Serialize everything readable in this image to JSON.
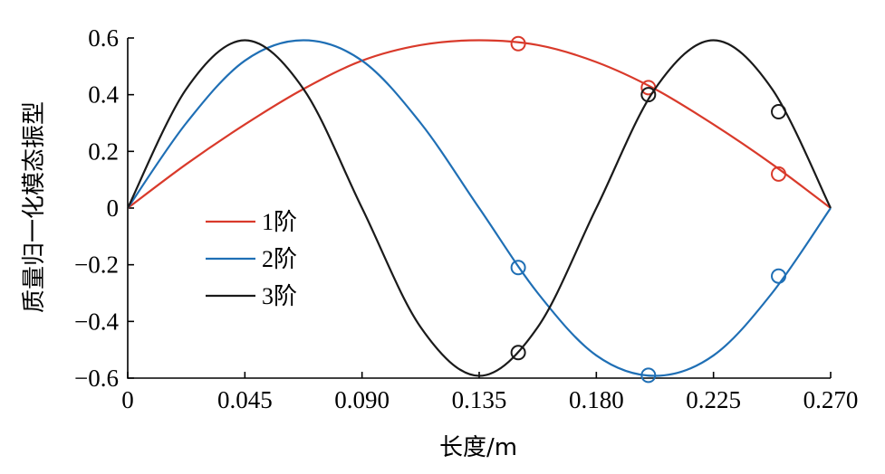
{
  "chart_data": {
    "type": "line",
    "xlabel": "长度/m",
    "ylabel": "质量归一化模态振型",
    "xlim": [
      0,
      0.27
    ],
    "ylim": [
      -0.6,
      0.6
    ],
    "x_ticks": [
      "0",
      "0.045",
      "0.090",
      "0.135",
      "0.180",
      "0.225",
      "0.270"
    ],
    "x_tick_values": [
      0,
      0.045,
      0.09,
      0.135,
      0.18,
      0.225,
      0.27
    ],
    "y_ticks": [
      "0.6",
      "0.4",
      "0.2",
      "0",
      "−0.2",
      "−0.4",
      "−0.6"
    ],
    "y_tick_values": [
      0.6,
      0.4,
      0.2,
      0,
      -0.2,
      -0.4,
      -0.6
    ],
    "grid": false,
    "legend_position": "center-left",
    "series": [
      {
        "name": "1阶",
        "color": "#d93a2b",
        "x": [
          0,
          0.0225,
          0.045,
          0.0675,
          0.09,
          0.1125,
          0.135,
          0.1575,
          0.18,
          0.2025,
          0.225,
          0.2475,
          0.27
        ],
        "values": [
          0,
          0.155,
          0.295,
          0.42,
          0.52,
          0.575,
          0.592,
          0.575,
          0.515,
          0.42,
          0.295,
          0.155,
          0
        ],
        "markers": [
          {
            "x": 0.15,
            "y": 0.58
          },
          {
            "x": 0.2,
            "y": 0.425
          },
          {
            "x": 0.25,
            "y": 0.12
          }
        ]
      },
      {
        "name": "2阶",
        "color": "#1f6fb5",
        "x": [
          0,
          0.0225,
          0.045,
          0.0675,
          0.09,
          0.1125,
          0.135,
          0.1575,
          0.18,
          0.2025,
          0.225,
          0.2475,
          0.27
        ],
        "values": [
          0,
          0.3,
          0.52,
          0.592,
          0.52,
          0.3,
          0,
          -0.3,
          -0.52,
          -0.592,
          -0.52,
          -0.3,
          0
        ],
        "markers": [
          {
            "x": 0.15,
            "y": -0.21
          },
          {
            "x": 0.2,
            "y": -0.59
          },
          {
            "x": 0.25,
            "y": -0.24
          }
        ]
      },
      {
        "name": "3阶",
        "color": "#1a1a1a",
        "x": [
          0,
          0.0225,
          0.045,
          0.0675,
          0.09,
          0.1125,
          0.135,
          0.1575,
          0.18,
          0.2025,
          0.225,
          0.2475,
          0.27
        ],
        "values": [
          0,
          0.42,
          0.592,
          0.42,
          0,
          -0.42,
          -0.592,
          -0.42,
          0,
          0.42,
          0.592,
          0.42,
          0
        ],
        "markers": [
          {
            "x": 0.15,
            "y": -0.51
          },
          {
            "x": 0.2,
            "y": 0.4
          },
          {
            "x": 0.25,
            "y": 0.34
          }
        ]
      }
    ]
  }
}
